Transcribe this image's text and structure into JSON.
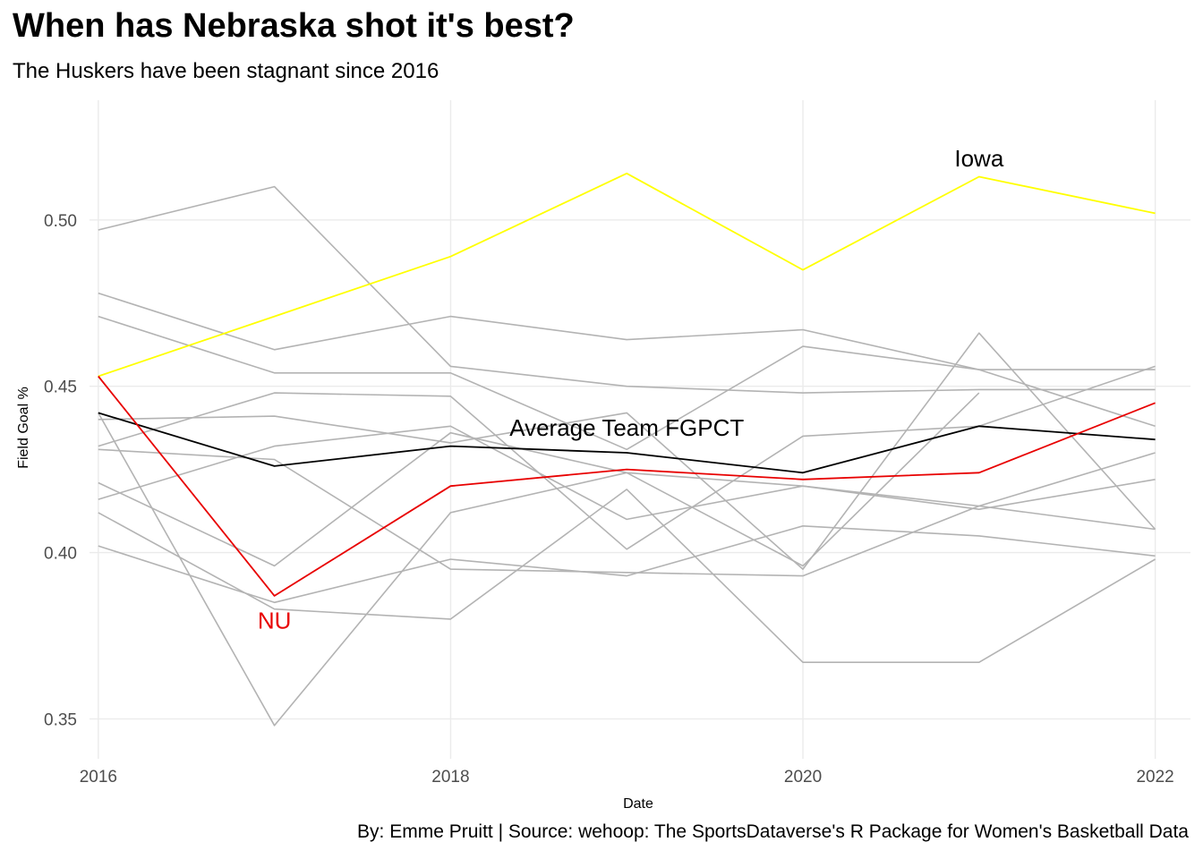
{
  "chart_data": {
    "type": "line",
    "title": "When has Nebraska shot it's best?",
    "subtitle": "The Huskers have been stagnant since 2016",
    "caption": "By: Emme Pruitt  |  Source: wehoop: The SportsDataverse's R Package for Women's Basketball Data",
    "xlabel": "Date",
    "ylabel": "Field Goal %",
    "x": [
      2016,
      2017,
      2018,
      2019,
      2020,
      2021,
      2022
    ],
    "xlim": [
      2015.95,
      2022.2
    ],
    "ylim": [
      0.338,
      0.536
    ],
    "x_ticks": [
      "2016",
      "2018",
      "2020",
      "2022"
    ],
    "y_ticks": [
      "0.35",
      "0.40",
      "0.45",
      "0.50"
    ],
    "grid": true,
    "colors": {
      "iowa": "#ffff00",
      "nebraska": "#e80000",
      "average": "#000000",
      "other_teams": "#b3b3b3",
      "grid": "#ebebeb"
    },
    "highlighted_series": [
      {
        "key": "iowa",
        "values": [
          0.453,
          0.471,
          0.489,
          0.514,
          0.485,
          0.513,
          0.502
        ]
      },
      {
        "key": "average",
        "values": [
          0.442,
          0.426,
          0.432,
          0.43,
          0.424,
          0.438,
          0.434
        ]
      },
      {
        "key": "nebraska",
        "values": [
          0.453,
          0.387,
          0.42,
          0.425,
          0.422,
          0.424,
          0.445
        ]
      }
    ],
    "other_series": [
      [
        0.497,
        0.51,
        0.456,
        0.45,
        0.448,
        0.449,
        0.449
      ],
      [
        0.478,
        0.461,
        0.471,
        0.464,
        0.467,
        0.455,
        0.455
      ],
      [
        0.471,
        0.454,
        0.454,
        0.431,
        0.462,
        0.455,
        0.438
      ],
      [
        0.44,
        0.441,
        0.433,
        0.442,
        0.395,
        0.466,
        0.407
      ],
      [
        0.432,
        0.448,
        0.447,
        0.401,
        0.435,
        0.438,
        0.456
      ],
      [
        0.416,
        0.432,
        0.438,
        0.41,
        0.42,
        0.414,
        0.43
      ],
      [
        0.421,
        0.396,
        0.436,
        0.424,
        0.42,
        0.413,
        0.422
      ],
      [
        0.442,
        0.348,
        0.412,
        0.424,
        0.396,
        0.448,
        null
      ],
      [
        0.431,
        0.428,
        0.395,
        0.394,
        0.393,
        0.414,
        0.407
      ],
      [
        0.412,
        0.383,
        0.38,
        0.419,
        0.367,
        0.367,
        0.398
      ],
      [
        0.402,
        0.385,
        0.398,
        0.393,
        0.408,
        0.405,
        0.399
      ]
    ],
    "annotations": [
      {
        "text": "Iowa",
        "x": 2021.0,
        "y": 0.5185,
        "color": "#000000"
      },
      {
        "text": "Average Team FGPCT",
        "x": 2019.0,
        "y": 0.4375,
        "color": "#000000"
      },
      {
        "text": "NU",
        "x": 2017.0,
        "y": 0.3795,
        "color": "#e80000"
      }
    ]
  }
}
